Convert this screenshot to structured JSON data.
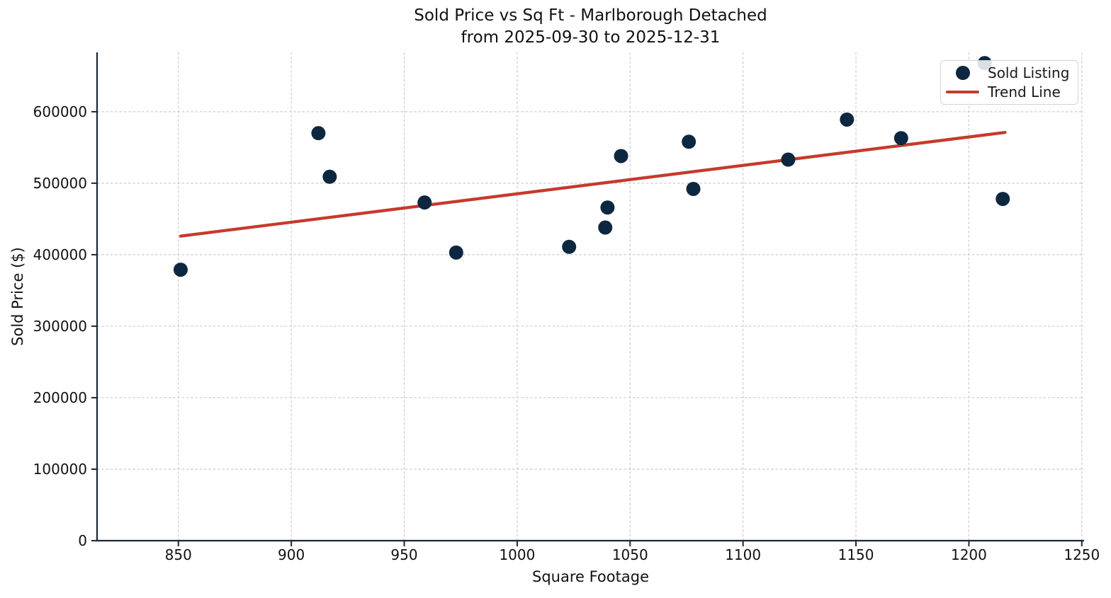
{
  "chart_data": {
    "type": "scatter",
    "title": "Sold Price vs Sq Ft - Marlborough Detached",
    "subtitle": "from 2025-09-30 to 2025-12-31",
    "xlabel": "Square Footage",
    "ylabel": "Sold Price ($)",
    "xlim": [
      814,
      1251
    ],
    "ylim": [
      0,
      683000
    ],
    "x_ticks": [
      850,
      900,
      950,
      1000,
      1050,
      1100,
      1150,
      1200,
      1250
    ],
    "y_ticks": [
      0,
      100000,
      200000,
      300000,
      400000,
      500000,
      600000
    ],
    "grid": true,
    "legend_position": "upper right",
    "series": [
      {
        "name": "Sold Listing",
        "type": "scatter",
        "color": "#0e2741",
        "points": [
          [
            851,
            379000
          ],
          [
            912,
            570000
          ],
          [
            917,
            509000
          ],
          [
            959,
            473000
          ],
          [
            973,
            403000
          ],
          [
            1023,
            411000
          ],
          [
            1039,
            438000
          ],
          [
            1040,
            466000
          ],
          [
            1046,
            538000
          ],
          [
            1076,
            558000
          ],
          [
            1078,
            492000
          ],
          [
            1120,
            533000
          ],
          [
            1146,
            589000
          ],
          [
            1170,
            563000
          ],
          [
            1207,
            668000
          ],
          [
            1215,
            478000
          ]
        ]
      },
      {
        "name": "Trend Line",
        "type": "line",
        "color": "#c43b2c",
        "points": [
          [
            851,
            426000
          ],
          [
            1216,
            571000
          ]
        ]
      }
    ],
    "colors": {
      "grid": "#cccccc",
      "spine": "#1c2733",
      "tick_text": "#111111",
      "legend_border": "#d3d3d3"
    }
  }
}
